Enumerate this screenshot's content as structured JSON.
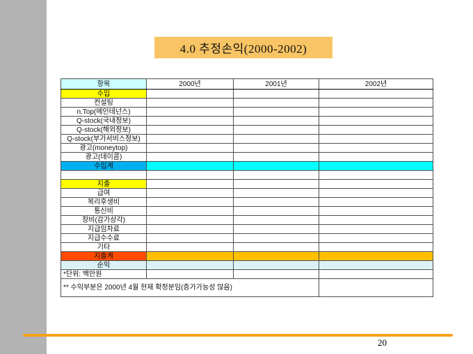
{
  "slide": {
    "title": "4.0 추정손익(2000-2002)",
    "page_number": "20",
    "colors": {
      "title_bg": "#f8c464",
      "accent_line": "#f9a11b",
      "left_band_gray": "#b3b3b3",
      "header_item_bg": "#ccffff",
      "section_label_bg": "#ffff00",
      "income_total_label_bg": "#00b0f0",
      "income_total_data_bg": "#00ffff",
      "expense_total_label_bg": "#ff4c00",
      "expense_total_data_bg": "#ffc000",
      "net_profit_row_bg": "#daf2f5"
    }
  },
  "table": {
    "columns": [
      "항목",
      "2000년",
      "2001년",
      "2002년"
    ],
    "rows": [
      {
        "label": "수입",
        "type": "section"
      },
      {
        "label": "컨설팅",
        "type": "item"
      },
      {
        "label": "n.Top(메인테넌스)",
        "type": "item"
      },
      {
        "label": "Q-stock(국내정보)",
        "type": "item"
      },
      {
        "label": "Q-stock(해외정보)",
        "type": "item"
      },
      {
        "label": "Q-stock(부가서비스정보)",
        "type": "item"
      },
      {
        "label": "광고(moneytop)",
        "type": "item"
      },
      {
        "label": "광고(데이콤)",
        "type": "item"
      },
      {
        "label": "수입계",
        "type": "income-total"
      },
      {
        "label": "",
        "type": "spacer"
      },
      {
        "label": "지출",
        "type": "section"
      },
      {
        "label": "급여",
        "type": "item"
      },
      {
        "label": "복리후생비",
        "type": "item"
      },
      {
        "label": "통신비",
        "type": "item"
      },
      {
        "label": "장비(감가상각)",
        "type": "item"
      },
      {
        "label": "지급임차료",
        "type": "item"
      },
      {
        "label": "지급수수료",
        "type": "item"
      },
      {
        "label": "기타",
        "type": "item"
      },
      {
        "label": "지출계",
        "type": "expense-total"
      },
      {
        "label": "순익",
        "type": "net"
      },
      {
        "label": "*단위: 백만원",
        "type": "unit"
      },
      {
        "label": "** 수익부분은 2000년 4월 현재 확정분임(증가가능성 많음)",
        "type": "footnote"
      }
    ],
    "data_cells_note": "all year data cells are empty in the screenshot"
  }
}
